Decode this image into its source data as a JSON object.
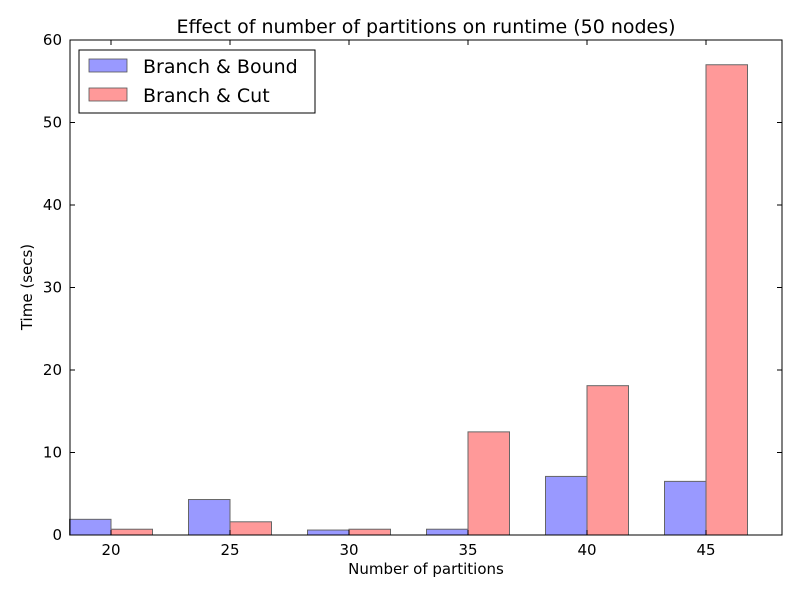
{
  "chart_data": {
    "type": "bar",
    "title": "Effect of number of partitions on runtime (50 nodes)",
    "xlabel": "Number of partitions",
    "ylabel": "Time (secs)",
    "categories": [
      "20",
      "25",
      "30",
      "35",
      "40",
      "45"
    ],
    "ylim": [
      0,
      60
    ],
    "yticks": [
      0,
      10,
      20,
      30,
      40,
      50,
      60
    ],
    "grid": false,
    "legend_position": "top-left",
    "series": [
      {
        "name": "Branch & Bound",
        "color": "#9999ff",
        "values": [
          1.9,
          4.3,
          0.6,
          0.7,
          7.1,
          6.5
        ]
      },
      {
        "name": "Branch & Cut",
        "color": "#ff9999",
        "values": [
          0.7,
          1.6,
          0.7,
          12.5,
          18.1,
          57.0
        ]
      }
    ]
  }
}
